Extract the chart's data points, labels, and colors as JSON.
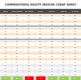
{
  "title": "COMMODITIES& EQUITY INDICES CHEAT SHEET",
  "title_color": "#2c2c2c",
  "title_bg": "#ffffff",
  "header_bg": "#4a4a4a",
  "header_fg": "#ffffff",
  "col_headers": [
    "SILVER",
    "GOLD COPPER",
    "WTI CRUDE",
    "100 MA",
    "S&P 500",
    "DOW 30",
    "FTSE 100"
  ],
  "light_orange": "#fde8cc",
  "white_bg": "#ffffff",
  "blue_divider": "#4472c4",
  "buy_color": "#92d050",
  "sell_color": "#ff0000",
  "bottom_signal_bg": "#d9d9d9",
  "pct_bg_even": "#eeeeee",
  "pct_bg_odd": "#f8f8f8",
  "fig_bg": "#ffffff",
  "signals": [
    "buy",
    "buy",
    "sell",
    "sell",
    "buy",
    "buy",
    "buy"
  ]
}
